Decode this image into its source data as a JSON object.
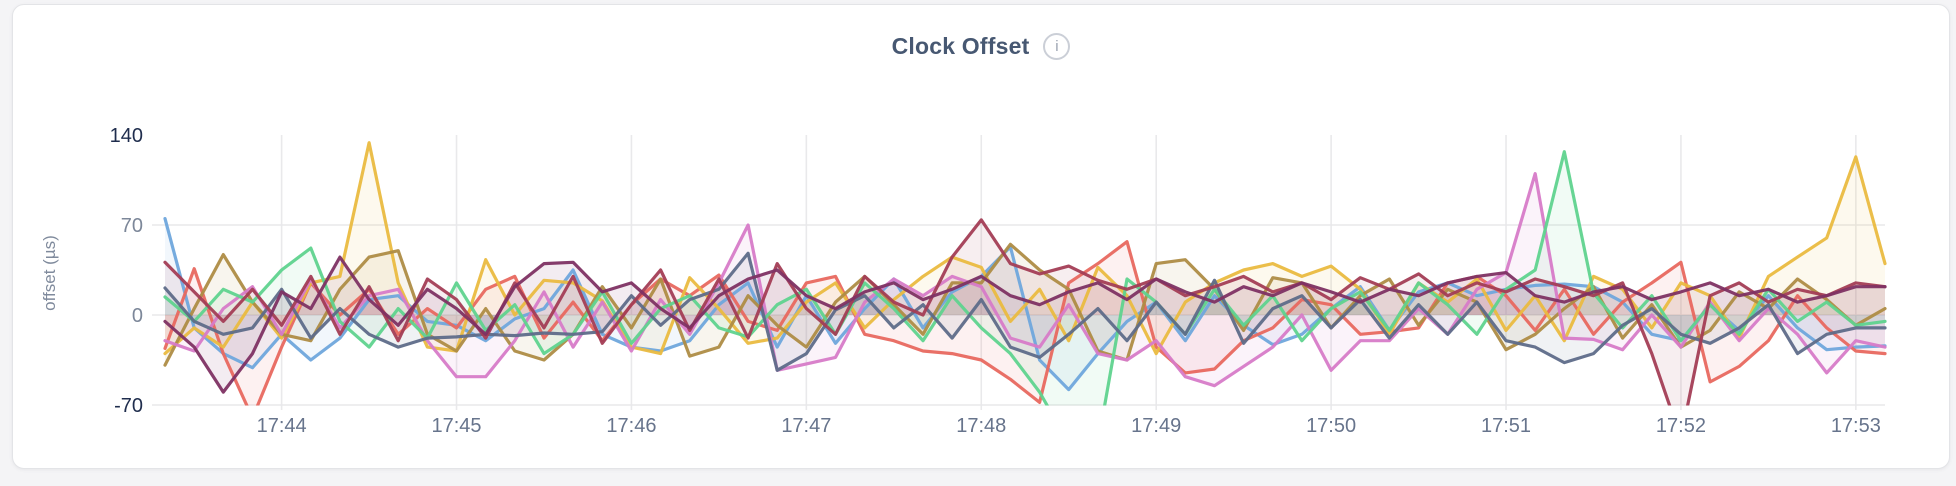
{
  "page": {
    "background": "#f4f4f6"
  },
  "card": {
    "background": "#ffffff",
    "border_color": "#e3e4e7"
  },
  "header": {
    "title": "Clock Offset",
    "info_icon_glyph": "i"
  },
  "chart_data": {
    "type": "line",
    "title": "Clock Offset",
    "xlabel": "",
    "ylabel": "offset (µs)",
    "ylim": [
      -70,
      140
    ],
    "grid": true,
    "legend": "none",
    "sample_interval_sec": 10,
    "x_ticks": [
      "17:44",
      "17:45",
      "17:46",
      "17:47",
      "17:48",
      "17:49",
      "17:50",
      "17:51",
      "17:52",
      "17:53"
    ],
    "x_tick_indices": [
      4,
      10,
      16,
      22,
      28,
      34,
      40,
      46,
      52,
      58
    ],
    "y_ticks": [
      {
        "label": "140",
        "value": 140,
        "emphasis": true,
        "gridline": false
      },
      {
        "label": "70",
        "value": 70,
        "emphasis": false,
        "gridline": true
      },
      {
        "label": "0",
        "value": 0,
        "emphasis": false,
        "gridline": true
      },
      {
        "label": "-70",
        "value": -70,
        "emphasis": true,
        "gridline": true
      }
    ],
    "series": [
      {
        "name": "blue",
        "color": "#6fa7dc",
        "values": [
          75,
          -10,
          -30,
          -41,
          -15,
          -35,
          -18,
          12,
          15,
          -5,
          -8,
          -20,
          -3,
          5,
          35,
          -15,
          -25,
          -28,
          -20,
          8,
          25,
          -25,
          15,
          -22,
          5,
          28,
          -10,
          18,
          30,
          53,
          -35,
          -58,
          -30,
          -5,
          10,
          -20,
          15,
          -8,
          -23,
          -15,
          5,
          22,
          -12,
          18,
          25,
          15,
          20,
          23,
          24,
          22,
          10,
          -15,
          -20,
          8,
          -12,
          15,
          -10,
          -27,
          -25,
          -24
        ]
      },
      {
        "name": "salmon",
        "color": "#e8685f",
        "values": [
          -26,
          36,
          -30,
          -80,
          -25,
          25,
          0,
          20,
          -15,
          5,
          -10,
          20,
          30,
          -18,
          10,
          -20,
          8,
          28,
          15,
          31,
          -5,
          -12,
          25,
          30,
          -15,
          -20,
          -28,
          -30,
          -35,
          -50,
          -68,
          25,
          40,
          57,
          -25,
          -45,
          -42,
          -20,
          -10,
          12,
          8,
          -15,
          -13,
          -10,
          25,
          30,
          15,
          -12,
          20,
          -15,
          10,
          25,
          41,
          -52,
          -40,
          -20,
          15,
          -10,
          -28,
          -30
        ]
      },
      {
        "name": "gold",
        "color": "#eabb40",
        "values": [
          -30,
          -10,
          -25,
          10,
          -18,
          25,
          30,
          134,
          25,
          -25,
          -28,
          43,
          0,
          27,
          25,
          11,
          -25,
          -30,
          29,
          5,
          -22,
          -18,
          10,
          25,
          -10,
          12,
          30,
          45,
          37,
          -5,
          20,
          -20,
          37,
          15,
          -30,
          10,
          25,
          35,
          40,
          30,
          38,
          20,
          -15,
          25,
          10,
          28,
          -12,
          15,
          -20,
          30,
          20,
          -10,
          25,
          15,
          -18,
          30,
          45,
          60,
          123,
          40
        ]
      },
      {
        "name": "olive",
        "color": "#ae8c45",
        "values": [
          -39,
          5,
          47,
          10,
          -15,
          -20,
          20,
          45,
          50,
          -15,
          -28,
          5,
          -28,
          -35,
          -15,
          22,
          -10,
          28,
          -32,
          -25,
          15,
          -8,
          -25,
          10,
          30,
          8,
          -15,
          25,
          25,
          55,
          35,
          20,
          -28,
          -35,
          40,
          43,
          20,
          -12,
          29,
          25,
          -10,
          15,
          28,
          -8,
          20,
          10,
          -27,
          -15,
          5,
          22,
          -18,
          8,
          -25,
          -12,
          18,
          5,
          28,
          12,
          -8,
          5
        ]
      },
      {
        "name": "orchid",
        "color": "#d77bc8",
        "values": [
          -20,
          -28,
          5,
          22,
          -15,
          28,
          -10,
          15,
          20,
          -20,
          -48,
          -48,
          -20,
          18,
          -25,
          10,
          -28,
          12,
          -15,
          25,
          70,
          -43,
          -38,
          -33,
          10,
          28,
          15,
          30,
          22,
          -18,
          -25,
          8,
          -30,
          -35,
          -20,
          -48,
          -55,
          -40,
          -25,
          0,
          -43,
          -20,
          -20,
          5,
          -15,
          20,
          33,
          110,
          -18,
          -19,
          -27,
          0,
          -25,
          10,
          -20,
          5,
          -15,
          -45,
          -20,
          -25
        ]
      },
      {
        "name": "green",
        "color": "#5fd38e",
        "values": [
          14,
          -5,
          20,
          10,
          35,
          52,
          -5,
          -25,
          5,
          -18,
          25,
          -12,
          8,
          -30,
          -15,
          18,
          -22,
          5,
          15,
          -10,
          -17,
          8,
          20,
          -15,
          25,
          5,
          -20,
          15,
          -10,
          -30,
          -60,
          -100,
          -100,
          28,
          10,
          -15,
          20,
          -8,
          15,
          -20,
          5,
          18,
          -12,
          25,
          8,
          -15,
          20,
          35,
          127,
          17,
          -10,
          15,
          -20,
          8,
          -15,
          20,
          -5,
          10,
          -8,
          -5
        ]
      },
      {
        "name": "slate",
        "color": "#5e6c89",
        "values": [
          21,
          -5,
          -15,
          -10,
          20,
          -18,
          5,
          -15,
          -25,
          -18,
          -17,
          -15,
          -16,
          -14,
          -15,
          -13,
          15,
          -8,
          12,
          20,
          48,
          -43,
          -30,
          4,
          15,
          -10,
          8,
          -18,
          12,
          -25,
          -33,
          -15,
          5,
          -20,
          10,
          -15,
          27,
          -22,
          5,
          15,
          -10,
          12,
          -18,
          8,
          -15,
          10,
          -20,
          -25,
          -37,
          -30,
          -8,
          5,
          -15,
          -22,
          -10,
          8,
          -30,
          -15,
          -10,
          -10
        ]
      },
      {
        "name": "maroon",
        "color": "#a33d55",
        "values": [
          41,
          18,
          -5,
          20,
          -8,
          30,
          -15,
          22,
          -20,
          28,
          12,
          -18,
          25,
          -10,
          30,
          -22,
          8,
          35,
          -12,
          28,
          -18,
          40,
          5,
          -15,
          30,
          10,
          0,
          45,
          74,
          40,
          32,
          38,
          27,
          20,
          28,
          15,
          22,
          30,
          18,
          25,
          12,
          29,
          20,
          32,
          15,
          25,
          18,
          28,
          22,
          15,
          25,
          -30,
          -96,
          15,
          25,
          10,
          20,
          15,
          25,
          22
        ]
      },
      {
        "name": "plum",
        "color": "#7e3163",
        "values": [
          -5,
          -25,
          -60,
          -30,
          18,
          5,
          45,
          12,
          -8,
          20,
          5,
          -15,
          22,
          40,
          41,
          18,
          25,
          5,
          -10,
          15,
          28,
          35,
          15,
          5,
          18,
          25,
          12,
          20,
          30,
          15,
          8,
          18,
          25,
          12,
          28,
          18,
          10,
          22,
          15,
          25,
          18,
          10,
          20,
          15,
          25,
          30,
          33,
          15,
          10,
          18,
          22,
          12,
          18,
          25,
          15,
          20,
          10,
          15,
          22,
          22
        ]
      }
    ]
  }
}
